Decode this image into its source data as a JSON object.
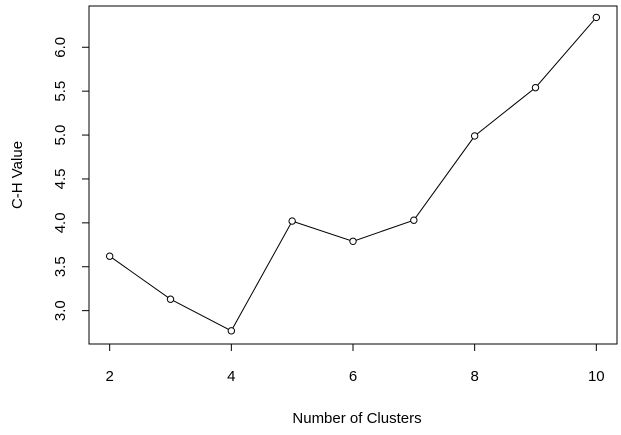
{
  "chart_data": {
    "type": "line",
    "title": "",
    "xlabel": "Number of Clusters",
    "ylabel": "C-H Value",
    "x": [
      2,
      3,
      4,
      5,
      6,
      7,
      8,
      9,
      10
    ],
    "series": [
      {
        "values": [
          3.62,
          3.13,
          2.77,
          4.02,
          3.79,
          4.03,
          4.99,
          5.54,
          6.34
        ]
      }
    ],
    "xticks": [
      "2",
      "4",
      "6",
      "8",
      "10"
    ],
    "yticks": [
      "3.0",
      "3.5",
      "4.0",
      "4.5",
      "5.0",
      "5.5",
      "6.0"
    ],
    "xlim": [
      1.66,
      10.34
    ],
    "ylim": [
      2.62,
      6.47
    ],
    "grid": false,
    "line_color": "#000000",
    "marker": "open-circle"
  }
}
